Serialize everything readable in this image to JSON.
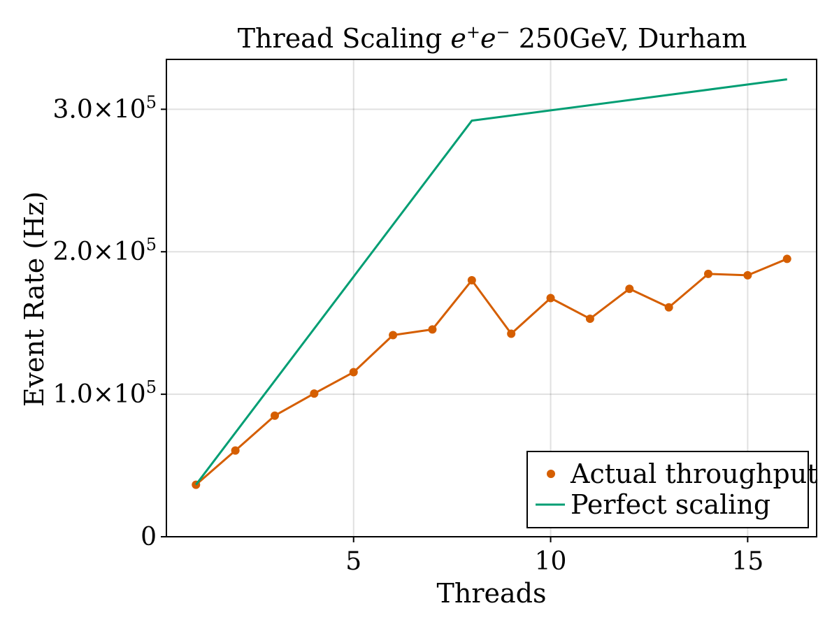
{
  "chart_data": {
    "type": "line",
    "title_parts": {
      "prefix": "Thread Scaling ",
      "e1": "e",
      "sup1": "+",
      "e2": "e",
      "sup2": "−",
      "suffix": " 250GeV, Durham"
    },
    "xlabel": "Threads",
    "ylabel": "Event Rate (Hz)",
    "xlim": [
      0.25,
      16.75
    ],
    "ylim": [
      0,
      335000
    ],
    "x_ticks": [
      {
        "value": 5,
        "label": "5"
      },
      {
        "value": 10,
        "label": "10"
      },
      {
        "value": 15,
        "label": "15"
      }
    ],
    "y_ticks": [
      {
        "value": 0,
        "label": "0",
        "mantissa": "",
        "exp": ""
      },
      {
        "value": 100000,
        "label": "1.0×10",
        "mantissa": "1.0×10",
        "exp": "5"
      },
      {
        "value": 200000,
        "label": "2.0×10",
        "mantissa": "2.0×10",
        "exp": "5"
      },
      {
        "value": 300000,
        "label": "3.0×10",
        "mantissa": "3.0×10",
        "exp": "5"
      }
    ],
    "grid": true,
    "legend_position": "bottom-right",
    "series": [
      {
        "name": "Actual throughput",
        "style": "line+markers",
        "color": "#D55E00",
        "x": [
          1,
          2,
          3,
          4,
          5,
          6,
          7,
          8,
          9,
          10,
          11,
          12,
          13,
          14,
          15,
          16
        ],
        "values": [
          36500,
          60500,
          85000,
          100500,
          115500,
          141500,
          145500,
          180000,
          142500,
          167500,
          153000,
          174000,
          161000,
          184500,
          183500,
          195000
        ]
      },
      {
        "name": "Perfect scaling",
        "style": "line",
        "color": "#009E73",
        "x": [
          1,
          8,
          16
        ],
        "values": [
          36500,
          292000,
          321000
        ]
      }
    ]
  }
}
